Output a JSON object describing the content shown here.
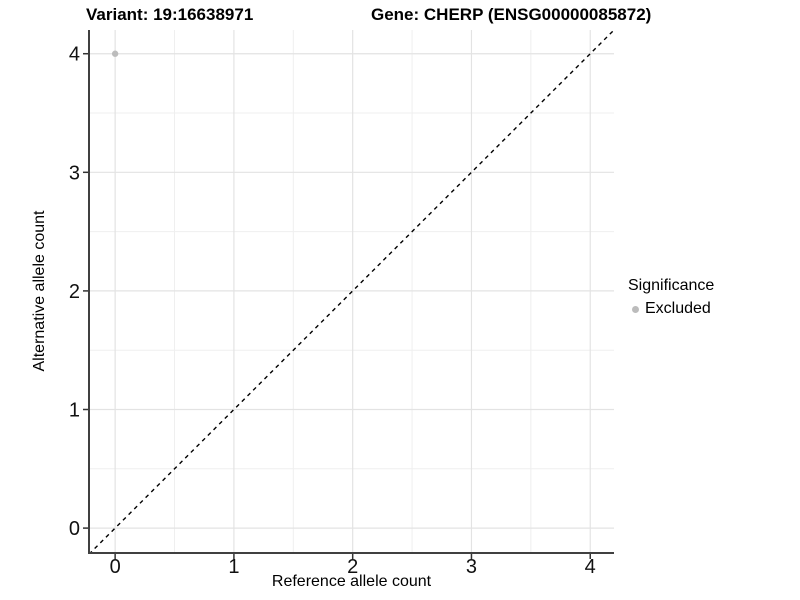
{
  "chart_data": {
    "type": "scatter",
    "title_left": "Variant: 19:16638971",
    "title_right": "Gene: CHERP (ENSG00000085872)",
    "xlabel": "Reference allele count",
    "ylabel": "Alternative allele count",
    "xlim": [
      -0.22,
      4.2
    ],
    "ylim": [
      -0.21,
      4.2
    ],
    "x_ticks": [
      0,
      1,
      2,
      3,
      4
    ],
    "y_ticks": [
      0,
      1,
      2,
      3,
      4
    ],
    "minor_ticks_x": [
      0.5,
      1.5,
      2.5,
      3.5
    ],
    "minor_ticks_y": [
      0.5,
      1.5,
      2.5,
      3.5
    ],
    "grid": true,
    "legend_position": "right",
    "points": [
      {
        "x": 0,
        "y": 4,
        "series": "Excluded"
      }
    ],
    "abline": {
      "slope": 1,
      "intercept": 0,
      "style": "dashed"
    },
    "legend": {
      "title": "Significance",
      "entries": [
        {
          "label": "Excluded",
          "color": "#bcbcbc"
        }
      ]
    },
    "colors": {
      "point_excluded": "#bcbcbc",
      "grid_major": "#e3e3e3",
      "grid_minor": "#efefef",
      "axis_line": "#404040",
      "tick_mark": "#333333",
      "tick_label": "#111111",
      "abline": "#000000",
      "background": "#ffffff"
    }
  }
}
